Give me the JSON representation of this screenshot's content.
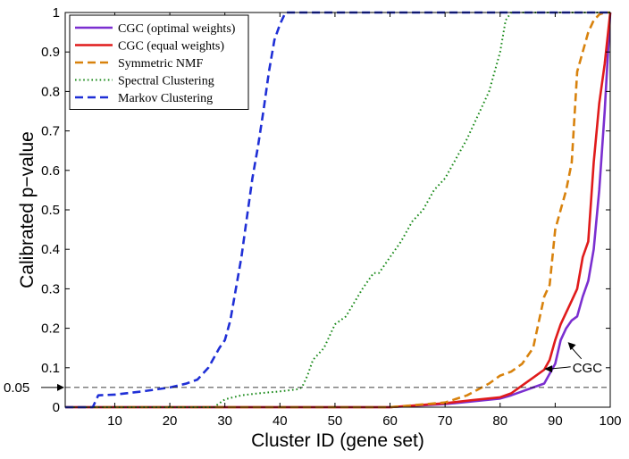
{
  "chart_data": {
    "type": "line",
    "xlabel": "Cluster ID (gene set)",
    "ylabel": "Calibrated p−value",
    "xlim": [
      1,
      100
    ],
    "ylim": [
      0,
      1
    ],
    "xticks": [
      10,
      20,
      30,
      40,
      50,
      60,
      70,
      80,
      90,
      100
    ],
    "yticks": [
      0,
      0.1,
      0.2,
      0.3,
      0.4,
      0.5,
      0.6,
      0.7,
      0.8,
      0.9,
      1
    ],
    "grid": false,
    "legend_position": "top-left",
    "threshold": {
      "value": 0.05,
      "label": "0.05"
    },
    "annotations": [
      {
        "text": "CGC",
        "x": 92,
        "y": 0.16
      }
    ],
    "series": [
      {
        "name": "CGC (optimal weights)",
        "color": "#7b2fd0",
        "style": "solid",
        "x": [
          1,
          60,
          70,
          75,
          80,
          82,
          84,
          86,
          88,
          90,
          91,
          92,
          93,
          94,
          95,
          96,
          97,
          98,
          99,
          100
        ],
        "y": [
          0,
          0,
          0.008,
          0.015,
          0.022,
          0.03,
          0.04,
          0.05,
          0.06,
          0.11,
          0.17,
          0.2,
          0.22,
          0.23,
          0.28,
          0.32,
          0.4,
          0.55,
          0.75,
          1.0
        ]
      },
      {
        "name": "CGC (equal weights)",
        "color": "#e01b1b",
        "style": "solid",
        "x": [
          1,
          60,
          70,
          75,
          80,
          82,
          84,
          86,
          88,
          89,
          90,
          91,
          92,
          93,
          94,
          95,
          96,
          97,
          98,
          99,
          100
        ],
        "y": [
          0,
          0,
          0.01,
          0.018,
          0.025,
          0.035,
          0.055,
          0.075,
          0.095,
          0.12,
          0.17,
          0.21,
          0.24,
          0.27,
          0.3,
          0.38,
          0.42,
          0.62,
          0.77,
          0.87,
          1.0
        ]
      },
      {
        "name": "Symmetric NMF",
        "color": "#d8820d",
        "style": "dashed",
        "x": [
          1,
          60,
          70,
          74,
          76,
          78,
          80,
          82,
          84,
          86,
          88,
          89,
          90,
          91,
          92,
          93,
          94,
          95,
          96,
          97,
          98,
          99,
          100
        ],
        "y": [
          0,
          0,
          0.012,
          0.03,
          0.045,
          0.06,
          0.08,
          0.09,
          0.11,
          0.15,
          0.28,
          0.31,
          0.45,
          0.5,
          0.55,
          0.62,
          0.85,
          0.9,
          0.95,
          0.98,
          0.995,
          1.0,
          1.0
        ]
      },
      {
        "name": "Spectral Clustering",
        "color": "#1a8a1a",
        "style": "dotted",
        "x": [
          1,
          28,
          30,
          33,
          36,
          40,
          43,
          44,
          45,
          46,
          48,
          50,
          52,
          55,
          57,
          58,
          60,
          62,
          64,
          66,
          68,
          70,
          72,
          74,
          76,
          78,
          80,
          81,
          82,
          100
        ],
        "y": [
          0,
          0,
          0.02,
          0.03,
          0.035,
          0.04,
          0.045,
          0.05,
          0.08,
          0.12,
          0.15,
          0.21,
          0.23,
          0.3,
          0.34,
          0.34,
          0.38,
          0.42,
          0.47,
          0.5,
          0.55,
          0.58,
          0.63,
          0.68,
          0.74,
          0.8,
          0.9,
          0.98,
          1.0,
          1.0
        ]
      },
      {
        "name": "Markov Clustering",
        "color": "#1f2fd6",
        "style": "dashed",
        "x": [
          1,
          6,
          7,
          10,
          15,
          20,
          23,
          25,
          27,
          29,
          30,
          31,
          32,
          33,
          34,
          35,
          36,
          37,
          38,
          39,
          40,
          41,
          100
        ],
        "y": [
          0,
          0,
          0.03,
          0.032,
          0.04,
          0.05,
          0.06,
          0.07,
          0.1,
          0.15,
          0.17,
          0.22,
          0.3,
          0.38,
          0.48,
          0.58,
          0.66,
          0.75,
          0.85,
          0.93,
          0.97,
          1.0,
          1.0
        ]
      }
    ]
  }
}
